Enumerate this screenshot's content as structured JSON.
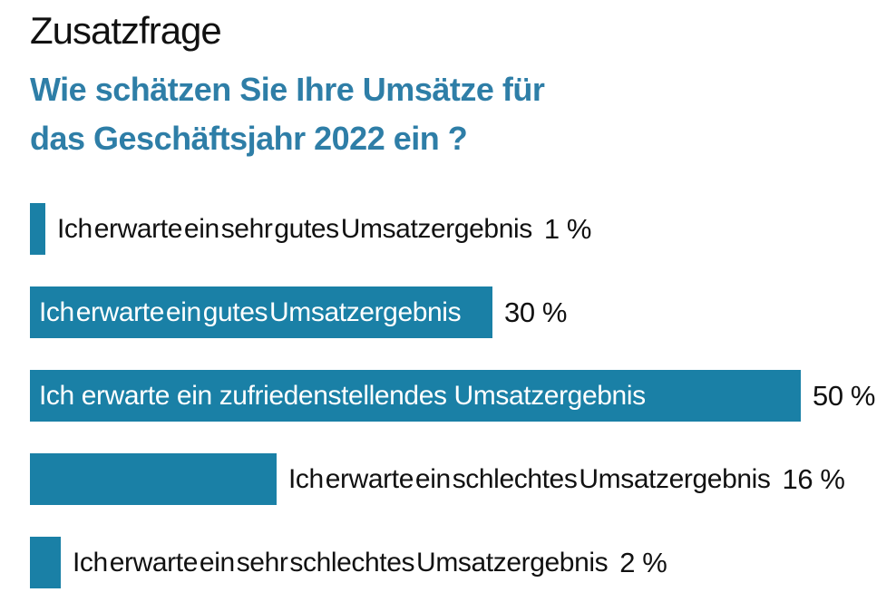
{
  "header": {
    "title": "Zusatzfrage",
    "question": "Wie schätzen Sie Ihre Umsätze für\ndas Geschäftsjahr 2022 ein ?"
  },
  "colors": {
    "bar": "#1A80A6",
    "question_text": "#2E7EA7",
    "title_text": "#111111",
    "label_inside": "#FFFFFF",
    "label_outside": "#111111",
    "background": "#FFFFFF"
  },
  "chart_data": {
    "type": "bar",
    "orientation": "horizontal",
    "title": "Zusatzfrage",
    "subtitle": "Wie schätzen Sie Ihre Umsätze für das Geschäftsjahr 2022 ein ?",
    "categories": [
      "Ich erwarte ein sehr gutes Umsatzergebnis",
      "Ich erwarte ein gutes Umsatzergebnis",
      "Ich erwarte ein zufriedenstellendes Umsatzergebnis",
      "Ich erwarte ein schlechtes Umsatzergebnis",
      "Ich erwarte ein sehr schlechtes Umsatzergebnis"
    ],
    "values": [
      1,
      30,
      50,
      16,
      2
    ],
    "value_labels": [
      "1 %",
      "30 %",
      "50 %",
      "16 %",
      "2 %"
    ],
    "label_position": [
      "outside",
      "inside",
      "inside",
      "outside",
      "outside"
    ],
    "xlim": [
      0,
      50
    ],
    "grid": false,
    "legend": false,
    "bar_color": "#1A80A6",
    "unit": "%"
  }
}
